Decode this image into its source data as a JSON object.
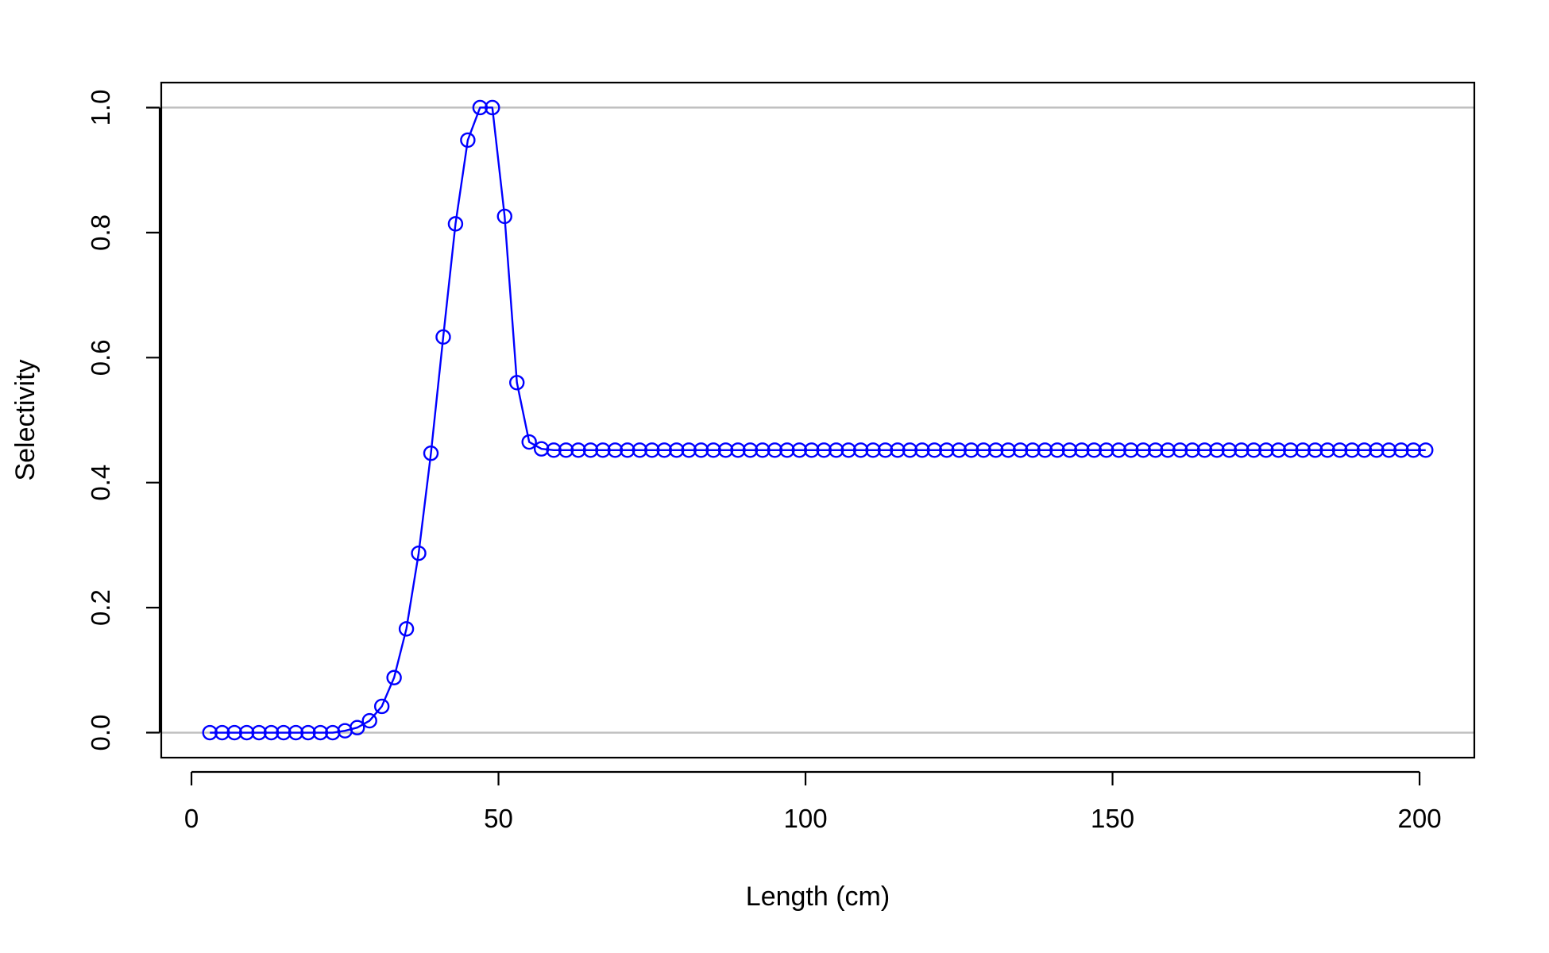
{
  "chart_data": {
    "type": "line",
    "title": "",
    "xlabel": "Length (cm)",
    "ylabel": "Selectivity",
    "xlim": [
      -4.92,
      208.92
    ],
    "ylim": [
      -0.04,
      1.04
    ],
    "xticks": [
      0,
      50,
      100,
      150,
      200
    ],
    "xtick_labels": [
      "0",
      "50",
      "100",
      "150",
      "200"
    ],
    "yticks": [
      0,
      0.2,
      0.4,
      0.6,
      0.8,
      1.0
    ],
    "ytick_labels": [
      "0.0",
      "0.2",
      "0.4",
      "0.6",
      "0.8",
      "1.0"
    ],
    "reference_lines": [
      0,
      1
    ],
    "grid": false,
    "legend": "none",
    "series": [
      {
        "color": "#0000ff",
        "marker": "open-circle",
        "x": [
          3,
          5,
          7,
          9,
          11,
          13,
          15,
          17,
          19,
          21,
          23,
          25,
          27,
          29,
          31,
          33,
          35,
          37,
          39,
          41,
          43,
          45,
          47,
          49,
          51,
          53,
          55,
          57,
          59,
          61,
          63,
          65,
          67,
          69,
          71,
          73,
          75,
          77,
          79,
          81,
          83,
          85,
          87,
          89,
          91,
          93,
          95,
          97,
          99,
          101,
          103,
          105,
          107,
          109,
          111,
          113,
          115,
          117,
          119,
          121,
          123,
          125,
          127,
          129,
          131,
          133,
          135,
          137,
          139,
          141,
          143,
          145,
          147,
          149,
          151,
          153,
          155,
          157,
          159,
          161,
          163,
          165,
          167,
          169,
          171,
          173,
          175,
          177,
          179,
          181,
          183,
          185,
          187,
          189,
          191,
          193,
          195,
          197,
          199,
          201
        ],
        "y": [
          0,
          0,
          0,
          0,
          0,
          0,
          0,
          0,
          0,
          0,
          0,
          0.003,
          0.008,
          0.019,
          0.042,
          0.088,
          0.166,
          0.287,
          0.447,
          0.633,
          0.814,
          0.948,
          1.0,
          1.0,
          0.826,
          0.56,
          0.465,
          0.454,
          0.452,
          0.452,
          0.452,
          0.452,
          0.452,
          0.452,
          0.452,
          0.452,
          0.452,
          0.452,
          0.452,
          0.452,
          0.452,
          0.452,
          0.452,
          0.452,
          0.452,
          0.452,
          0.452,
          0.452,
          0.452,
          0.452,
          0.452,
          0.452,
          0.452,
          0.452,
          0.452,
          0.452,
          0.452,
          0.452,
          0.452,
          0.452,
          0.452,
          0.452,
          0.452,
          0.452,
          0.452,
          0.452,
          0.452,
          0.452,
          0.452,
          0.452,
          0.452,
          0.452,
          0.452,
          0.452,
          0.452,
          0.452,
          0.452,
          0.452,
          0.452,
          0.452,
          0.452,
          0.452,
          0.452,
          0.452,
          0.452,
          0.452,
          0.452,
          0.452,
          0.452,
          0.452,
          0.452,
          0.452,
          0.452,
          0.452,
          0.452,
          0.452,
          0.452,
          0.452,
          0.452,
          0.452
        ]
      }
    ],
    "colors": {
      "series": "#0000ff",
      "reference_line": "#bebebe",
      "frame": "#000000"
    }
  }
}
